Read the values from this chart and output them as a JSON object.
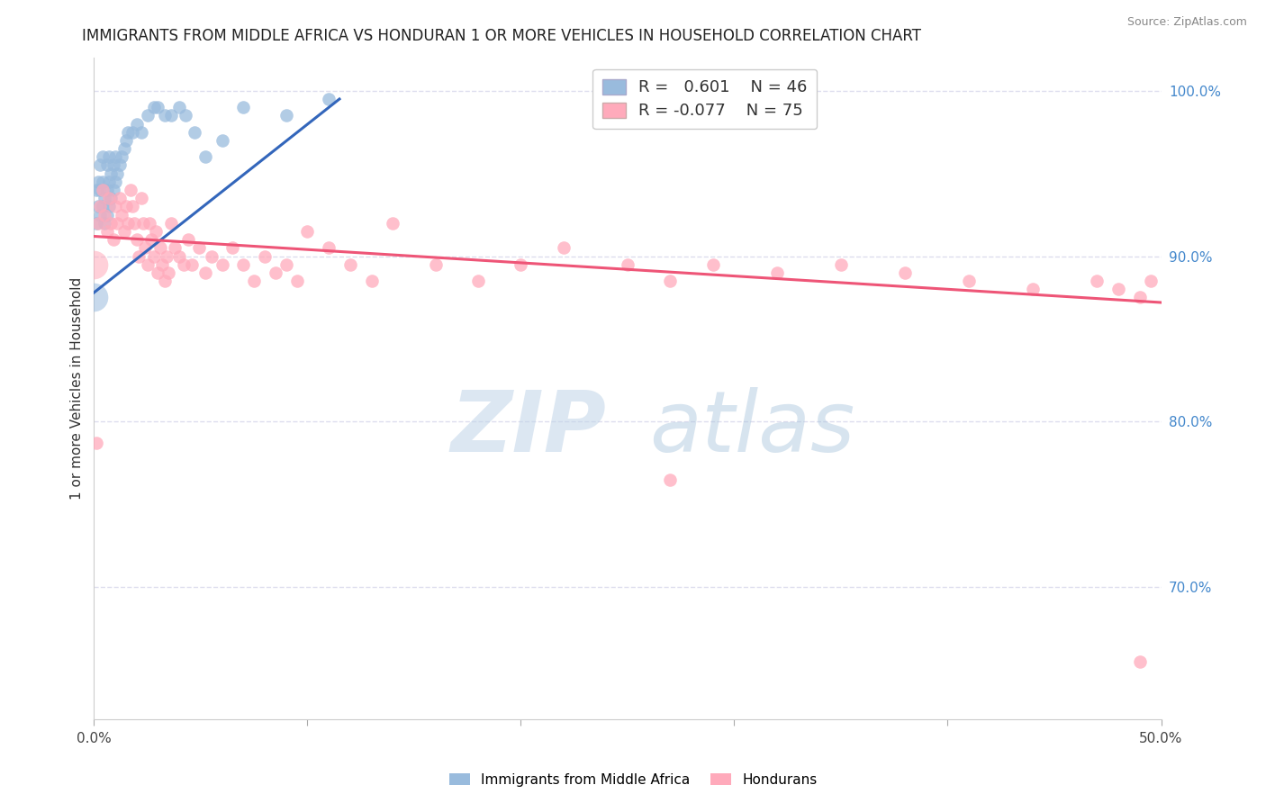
{
  "title": "IMMIGRANTS FROM MIDDLE AFRICA VS HONDURAN 1 OR MORE VEHICLES IN HOUSEHOLD CORRELATION CHART",
  "source": "Source: ZipAtlas.com",
  "ylabel": "1 or more Vehicles in Household",
  "watermark_zip": "ZIP",
  "watermark_atlas": "atlas",
  "xlim": [
    0.0,
    0.5
  ],
  "ylim": [
    0.62,
    1.02
  ],
  "xtick_positions": [
    0.0,
    0.1,
    0.2,
    0.3,
    0.4,
    0.5
  ],
  "xtick_labels": [
    "0.0%",
    "",
    "",
    "",
    "",
    "50.0%"
  ],
  "ytick_vals": [
    1.0,
    0.9,
    0.8,
    0.7
  ],
  "ytick_labels": [
    "100.0%",
    "90.0%",
    "80.0%",
    "70.0%"
  ],
  "blue_R": 0.601,
  "blue_N": 46,
  "pink_R": -0.077,
  "pink_N": 75,
  "blue_color": "#99BBDD",
  "pink_color": "#FFAABB",
  "blue_line_color": "#3366BB",
  "pink_line_color": "#EE5577",
  "background_color": "#FFFFFF",
  "grid_color": "#DDDDEE",
  "blue_scatter_x": [
    0.001,
    0.001,
    0.002,
    0.002,
    0.003,
    0.003,
    0.003,
    0.004,
    0.004,
    0.004,
    0.005,
    0.005,
    0.006,
    0.006,
    0.006,
    0.007,
    0.007,
    0.007,
    0.008,
    0.008,
    0.009,
    0.009,
    0.01,
    0.01,
    0.011,
    0.012,
    0.013,
    0.014,
    0.015,
    0.016,
    0.018,
    0.02,
    0.022,
    0.025,
    0.028,
    0.03,
    0.033,
    0.036,
    0.04,
    0.043,
    0.047,
    0.052,
    0.06,
    0.07,
    0.09,
    0.11
  ],
  "blue_scatter_y": [
    0.92,
    0.94,
    0.93,
    0.945,
    0.925,
    0.94,
    0.955,
    0.93,
    0.945,
    0.96,
    0.92,
    0.935,
    0.925,
    0.94,
    0.955,
    0.93,
    0.945,
    0.96,
    0.935,
    0.95,
    0.94,
    0.955,
    0.945,
    0.96,
    0.95,
    0.955,
    0.96,
    0.965,
    0.97,
    0.975,
    0.975,
    0.98,
    0.975,
    0.985,
    0.99,
    0.99,
    0.985,
    0.985,
    0.99,
    0.985,
    0.975,
    0.96,
    0.97,
    0.99,
    0.985,
    0.995
  ],
  "blue_big_x": [
    0.0
  ],
  "blue_big_y": [
    0.875
  ],
  "pink_scatter_x": [
    0.001,
    0.002,
    0.003,
    0.004,
    0.005,
    0.006,
    0.007,
    0.008,
    0.009,
    0.01,
    0.011,
    0.012,
    0.013,
    0.014,
    0.015,
    0.016,
    0.017,
    0.018,
    0.019,
    0.02,
    0.021,
    0.022,
    0.023,
    0.024,
    0.025,
    0.026,
    0.027,
    0.028,
    0.029,
    0.03,
    0.031,
    0.032,
    0.033,
    0.034,
    0.035,
    0.036,
    0.038,
    0.04,
    0.042,
    0.044,
    0.046,
    0.049,
    0.052,
    0.055,
    0.06,
    0.065,
    0.07,
    0.075,
    0.08,
    0.085,
    0.09,
    0.095,
    0.1,
    0.11,
    0.12,
    0.13,
    0.14,
    0.16,
    0.18,
    0.2,
    0.22,
    0.25,
    0.27,
    0.29,
    0.32,
    0.35,
    0.38,
    0.41,
    0.44,
    0.47,
    0.48,
    0.49,
    0.495,
    0.27,
    0.49
  ],
  "pink_scatter_y": [
    0.787,
    0.92,
    0.93,
    0.94,
    0.925,
    0.915,
    0.935,
    0.92,
    0.91,
    0.93,
    0.92,
    0.935,
    0.925,
    0.915,
    0.93,
    0.92,
    0.94,
    0.93,
    0.92,
    0.91,
    0.9,
    0.935,
    0.92,
    0.905,
    0.895,
    0.92,
    0.91,
    0.9,
    0.915,
    0.89,
    0.905,
    0.895,
    0.885,
    0.9,
    0.89,
    0.92,
    0.905,
    0.9,
    0.895,
    0.91,
    0.895,
    0.905,
    0.89,
    0.9,
    0.895,
    0.905,
    0.895,
    0.885,
    0.9,
    0.89,
    0.895,
    0.885,
    0.915,
    0.905,
    0.895,
    0.885,
    0.92,
    0.895,
    0.885,
    0.895,
    0.905,
    0.895,
    0.885,
    0.895,
    0.89,
    0.895,
    0.89,
    0.885,
    0.88,
    0.885,
    0.88,
    0.875,
    0.885,
    0.765,
    0.655
  ],
  "pink_big_x": [
    0.0
  ],
  "pink_big_y": [
    0.895
  ],
  "blue_line_x0": 0.0,
  "blue_line_x1": 0.115,
  "blue_line_y0": 0.878,
  "blue_line_y1": 0.995,
  "pink_line_x0": 0.0,
  "pink_line_x1": 0.5,
  "pink_line_y0": 0.912,
  "pink_line_y1": 0.872
}
